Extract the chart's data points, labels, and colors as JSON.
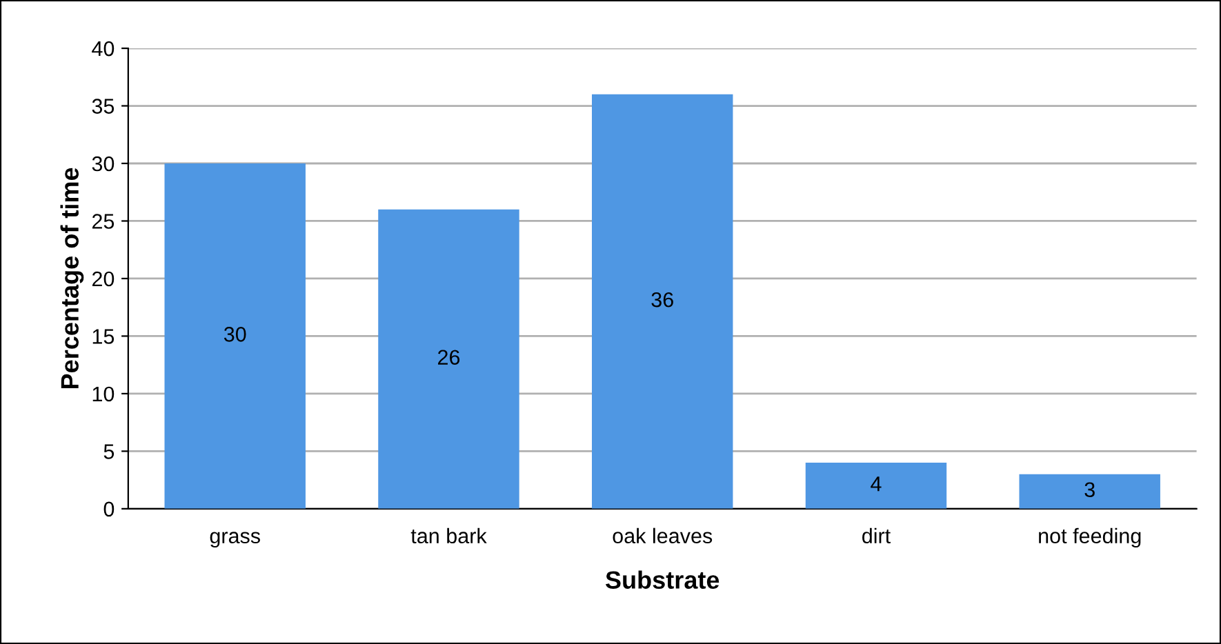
{
  "chart_data": {
    "type": "bar",
    "xlabel": "Substrate",
    "ylabel": "Percentage of time",
    "categories": [
      "grass",
      "tan bark",
      "oak leaves",
      "dirt",
      "not feeding"
    ],
    "values": [
      30,
      26,
      36,
      4,
      3
    ],
    "color": "#4f97e3",
    "ylim": [
      0,
      40
    ],
    "yticks": [
      0,
      5,
      10,
      15,
      20,
      25,
      30,
      35,
      40
    ],
    "grid": "y",
    "data_labels": true,
    "legend": false
  }
}
